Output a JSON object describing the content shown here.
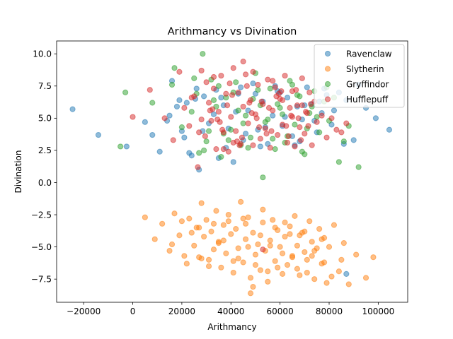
{
  "chart_data": {
    "type": "scatter",
    "title": "Arithmancy vs Divination",
    "xlabel": "Arithmancy",
    "ylabel": "Divination",
    "xlim": [
      -31000,
      112000
    ],
    "ylim": [
      -9.3,
      11.0
    ],
    "xticks": [
      -20000,
      0,
      20000,
      40000,
      60000,
      80000,
      100000
    ],
    "xtick_labels": [
      "−20000",
      "0",
      "20000",
      "40000",
      "60000",
      "80000",
      "100000"
    ],
    "yticks": [
      -7.5,
      -5.0,
      -2.5,
      0.0,
      2.5,
      5.0,
      7.5,
      10.0
    ],
    "ytick_labels": [
      "−7.5",
      "−5.0",
      "−2.5",
      "0.0",
      "2.5",
      "5.0",
      "7.5",
      "10.0"
    ],
    "grid": false,
    "legend_position": "top-right",
    "point_alpha": 0.5,
    "series": [
      {
        "name": "Ravenclaw",
        "color": "#1f77b4",
        "x": [
          -24500,
          -14000,
          -2500,
          5000,
          8000,
          11000,
          14000,
          16000,
          18000,
          20000,
          22000,
          24000,
          26000,
          27000,
          29000,
          31000,
          33000,
          35000,
          37000,
          39000,
          41000,
          43000,
          45000,
          47000,
          49000,
          51000,
          53000,
          55000,
          57000,
          59000,
          61000,
          63000,
          65000,
          67000,
          69000,
          71000,
          73000,
          75000,
          77000,
          79000,
          81000,
          84000,
          87000,
          90000,
          92000,
          95000,
          99000,
          104500,
          15000,
          21000,
          25500,
          28500,
          34000,
          38000,
          42000,
          46000,
          50000,
          54000,
          58000,
          62000,
          66000,
          70000,
          74000,
          78000,
          82000,
          86000,
          19000,
          23000,
          36000,
          44000,
          52000,
          60000,
          68000,
          76000,
          87000
        ],
        "y": [
          5.7,
          3.7,
          2.8,
          4.7,
          3.7,
          2.4,
          4.8,
          7.9,
          5.9,
          4.0,
          6.2,
          2.1,
          7.3,
          1.0,
          6.7,
          4.6,
          5.3,
          1.9,
          6.0,
          4.2,
          1.6,
          6.9,
          3.3,
          5.6,
          7.7,
          4.1,
          6.3,
          3.0,
          5.2,
          7.1,
          4.4,
          6.6,
          3.6,
          5.9,
          4.9,
          7.4,
          6.1,
          3.9,
          5.4,
          6.8,
          4.5,
          7.0,
          6.4,
          3.3,
          7.6,
          5.8,
          5.0,
          4.1,
          5.2,
          3.5,
          6.5,
          4.0,
          7.2,
          2.7,
          5.5,
          3.8,
          6.9,
          4.3,
          7.5,
          5.1,
          2.9,
          6.0,
          4.8,
          7.3,
          5.6,
          3.0,
          6.4,
          2.3,
          6.6,
          7.4,
          2.8,
          7.0,
          3.2,
          6.3,
          -7.1
        ]
      },
      {
        "name": "Slytherin",
        "color": "#ff7f0e",
        "x": [
          5000,
          9000,
          12000,
          15000,
          17000,
          19000,
          20000,
          22000,
          23000,
          25000,
          26000,
          27000,
          28000,
          29000,
          30000,
          31000,
          32000,
          33000,
          34000,
          35000,
          36000,
          37000,
          38000,
          39000,
          40000,
          41000,
          42000,
          43000,
          44000,
          45000,
          46000,
          47000,
          48000,
          49000,
          50000,
          51000,
          52000,
          53000,
          54000,
          55000,
          56000,
          57000,
          58000,
          59000,
          60000,
          61000,
          62000,
          63000,
          64000,
          65000,
          66000,
          67000,
          68000,
          69000,
          70000,
          71000,
          72000,
          73000,
          74000,
          75000,
          76000,
          77000,
          78000,
          79000,
          80000,
          82000,
          84000,
          86000,
          88000,
          91000,
          95000,
          98000,
          16000,
          24000,
          28000,
          33000,
          37000,
          41000,
          45000,
          47000,
          49000,
          52000,
          55000,
          58000,
          61000,
          64000,
          67000,
          70000,
          73000,
          77000,
          81000,
          85000,
          21000,
          27000,
          31000,
          35000,
          39000,
          43000,
          46000,
          48000,
          50000,
          53000,
          56000,
          59000,
          62000,
          65000,
          68000,
          71000,
          74000,
          78000
        ],
        "y": [
          -2.7,
          -4.4,
          -3.2,
          -5.3,
          -2.4,
          -4.1,
          -3.0,
          -6.3,
          -2.8,
          -4.9,
          -3.5,
          -5.8,
          -1.6,
          -4.2,
          -2.9,
          -6.0,
          -3.8,
          -5.2,
          -2.2,
          -4.6,
          -6.6,
          -3.3,
          -5.5,
          -2.5,
          -4.0,
          -7.0,
          -3.6,
          -5.1,
          -1.5,
          -6.2,
          -4.4,
          -2.7,
          -7.4,
          -3.9,
          -5.6,
          -4.8,
          -6.8,
          -3.1,
          -5.3,
          -7.7,
          -4.5,
          -2.9,
          -6.1,
          -3.7,
          -5.0,
          -7.1,
          -4.2,
          -6.4,
          -3.4,
          -5.7,
          -2.6,
          -4.9,
          -7.2,
          -3.9,
          -5.4,
          -6.0,
          -3.0,
          -4.6,
          -7.5,
          -5.1,
          -3.6,
          -6.3,
          -4.3,
          -7.8,
          -5.0,
          -3.3,
          -6.9,
          -4.7,
          -7.9,
          -5.6,
          -7.4,
          -5.8,
          -4.8,
          -3.9,
          -5.9,
          -3.2,
          -4.5,
          -6.1,
          -2.8,
          -5.0,
          -8.1,
          -4.1,
          -6.9,
          -3.5,
          -5.5,
          -4.0,
          -6.7,
          -3.8,
          -5.7,
          -4.4,
          -7.3,
          -6.0,
          -5.7,
          -3.5,
          -6.5,
          -4.7,
          -3.0,
          -5.9,
          -3.2,
          -8.6,
          -6.4,
          -2.1,
          -4.9,
          -6.6,
          -3.1,
          -5.8,
          -4.1,
          -7.0,
          -5.3,
          -6.2
        ]
      },
      {
        "name": "Gryffindor",
        "color": "#2ca02c",
        "x": [
          -5000,
          -3000,
          8000,
          16000,
          17000,
          20000,
          24000,
          25000,
          27000,
          28500,
          30000,
          32000,
          34000,
          36000,
          38000,
          40000,
          42000,
          44000,
          46000,
          48000,
          50000,
          52000,
          53000,
          54000,
          56000,
          58000,
          60000,
          62000,
          64000,
          66000,
          68000,
          70000,
          72000,
          74000,
          76000,
          78000,
          80000,
          84000,
          86000,
          88000,
          92000,
          26000,
          31000,
          35000,
          39000,
          43000,
          47000,
          51000,
          55000,
          59000,
          63000,
          67000,
          71000,
          75000,
          79000,
          82000,
          29000,
          33000,
          37000,
          41000,
          45000,
          49000,
          57000,
          61000,
          65000,
          69000,
          73000
        ],
        "y": [
          2.8,
          7.0,
          6.2,
          7.6,
          8.9,
          4.3,
          5.5,
          8.1,
          2.3,
          10.0,
          3.2,
          8.0,
          5.9,
          2.0,
          6.6,
          4.1,
          7.8,
          2.9,
          5.2,
          3.5,
          8.5,
          6.0,
          0.4,
          4.7,
          7.3,
          2.6,
          5.8,
          3.1,
          7.9,
          4.5,
          6.7,
          2.2,
          5.4,
          7.1,
          3.9,
          6.3,
          4.8,
          1.6,
          3.2,
          4.4,
          1.2,
          6.9,
          4.0,
          7.5,
          3.3,
          5.6,
          2.7,
          7.2,
          4.9,
          6.1,
          3.6,
          6.8,
          4.2,
          5.1,
          7.4,
          6.6,
          2.5,
          6.4,
          3.8,
          7.0,
          4.6,
          6.5,
          3.4,
          5.3,
          7.6,
          2.4,
          5.9
        ]
      },
      {
        "name": "Hufflepuff",
        "color": "#d62728",
        "x": [
          0,
          7000,
          13000,
          16500,
          19000,
          21000,
          23000,
          25000,
          26500,
          28000,
          29500,
          31000,
          32000,
          33000,
          34000,
          35000,
          36000,
          37000,
          38000,
          39000,
          40000,
          41000,
          42000,
          43000,
          44000,
          45000,
          46000,
          47000,
          48000,
          49000,
          50000,
          51000,
          52000,
          53000,
          54000,
          55000,
          56000,
          57000,
          58000,
          59000,
          60000,
          61000,
          62000,
          63000,
          64000,
          65000,
          66000,
          67000,
          68000,
          69000,
          70000,
          71000,
          72000,
          73000,
          74000,
          75000,
          77000,
          79000,
          81000,
          83000,
          85000,
          87000,
          30000,
          34500,
          38500,
          42500,
          46500,
          50500,
          54500,
          58500,
          62500,
          66500,
          70500,
          24000,
          28000,
          32500,
          36500,
          40500,
          44500,
          48500,
          52500,
          56500,
          60500,
          64500,
          68500,
          72500,
          27000,
          31500,
          35500,
          39500,
          43500,
          47500,
          51500,
          55500,
          59500,
          63500,
          67500,
          71500,
          45000,
          53000,
          61000,
          49000,
          57000,
          41000,
          65000,
          37000,
          33000,
          69000
        ],
        "y": [
          5.1,
          7.2,
          5.0,
          3.3,
          8.6,
          5.8,
          4.4,
          6.7,
          1.2,
          8.7,
          3.6,
          6.2,
          4.8,
          7.3,
          2.6,
          5.5,
          8.3,
          3.9,
          6.9,
          2.4,
          5.1,
          8.9,
          4.0,
          7.0,
          3.0,
          5.9,
          8.4,
          4.6,
          6.4,
          2.9,
          5.3,
          7.6,
          3.4,
          6.1,
          4.2,
          8.0,
          2.7,
          5.6,
          7.4,
          3.7,
          6.5,
          4.5,
          8.3,
          3.1,
          5.8,
          7.1,
          2.8,
          6.0,
          4.3,
          8.1,
          3.8,
          5.4,
          7.0,
          2.9,
          6.3,
          4.7,
          5.2,
          3.5,
          5.0,
          4.1,
          3.9,
          4.6,
          7.8,
          4.9,
          6.0,
          3.2,
          7.5,
          5.0,
          3.8,
          6.7,
          4.4,
          7.2,
          5.5,
          6.6,
          4.9,
          5.7,
          4.1,
          6.8,
          3.5,
          5.4,
          6.3,
          4.0,
          7.1,
          5.2,
          3.3,
          6.1,
          3.9,
          5.6,
          4.7,
          7.7,
          2.9,
          6.2,
          4.3,
          5.8,
          6.9,
          3.6,
          5.0,
          4.4,
          9.4,
          -5.2,
          6.4,
          8.6,
          7.9,
          3.1,
          5.1,
          2.6,
          8.2,
          6.0
        ]
      }
    ]
  }
}
